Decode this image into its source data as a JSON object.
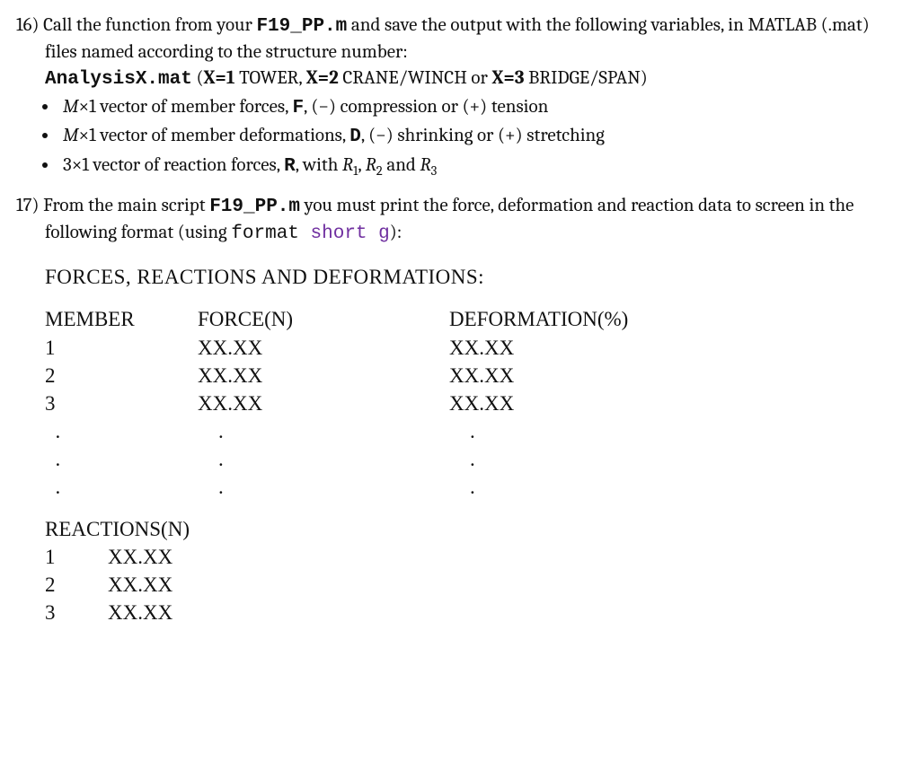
{
  "q16": {
    "number": "16)",
    "text_a": "Call the function from your ",
    "code_a": "F19_PP.m",
    "text_b": " and save the output with the following variables, in MATLAB (.mat) files named according to the structure number:",
    "line2_code": "AnalysisX.mat",
    "line2_rest": " (",
    "x1": "X=1",
    "t1": " TOWER, ",
    "x2": "X=2",
    "t2": " CRANE/WINCH or ",
    "x3": "X=3",
    "t3": " BRIDGE/SPAN)",
    "bullets": [
      {
        "pre": "M",
        "mid": "×1 vector of member forces, ",
        "b": "F",
        "post": ", (−) compression or (+) tension"
      },
      {
        "pre": "M",
        "mid": "×1 vector of member deformations, ",
        "b": "D",
        "post": ", (−) shrinking or (+) stretching"
      },
      {
        "pre": "3",
        "mid": "×1 vector of reaction forces, ",
        "b": "R",
        "post": ", with  ",
        "r": "R",
        "s1": "1",
        "c": ", ",
        "s2": "2",
        "a": " and ",
        "s3": "3"
      }
    ]
  },
  "q17": {
    "number": "17)",
    "text_a": "From the main script ",
    "code_a": "F19_PP.m",
    "text_b": "  you must print the force, deformation and reaction data to screen in the following format (using ",
    "fmt": "format",
    "shortg": " short g",
    "text_c": "):",
    "heading": "FORCES, REACTIONS AND DEFORMATIONS:",
    "table": {
      "h1": "MEMBER",
      "h2": "FORCE(N)",
      "h3": "DEFORMATION(%)",
      "rows": [
        {
          "n": "1",
          "f": "XX.XX",
          "d": "XX.XX"
        },
        {
          "n": "2",
          "f": "XX.XX",
          "d": "XX.XX"
        },
        {
          "n": "3",
          "f": "XX.XX",
          "d": "XX.XX"
        }
      ],
      "dots": [
        ".",
        ".",
        "."
      ]
    },
    "reactions": {
      "heading": "REACTIONS(N)",
      "rows": [
        {
          "n": "1",
          "v": "XX.XX"
        },
        {
          "n": "2",
          "v": "XX.XX"
        },
        {
          "n": "3",
          "v": "XX.XX"
        }
      ]
    }
  }
}
